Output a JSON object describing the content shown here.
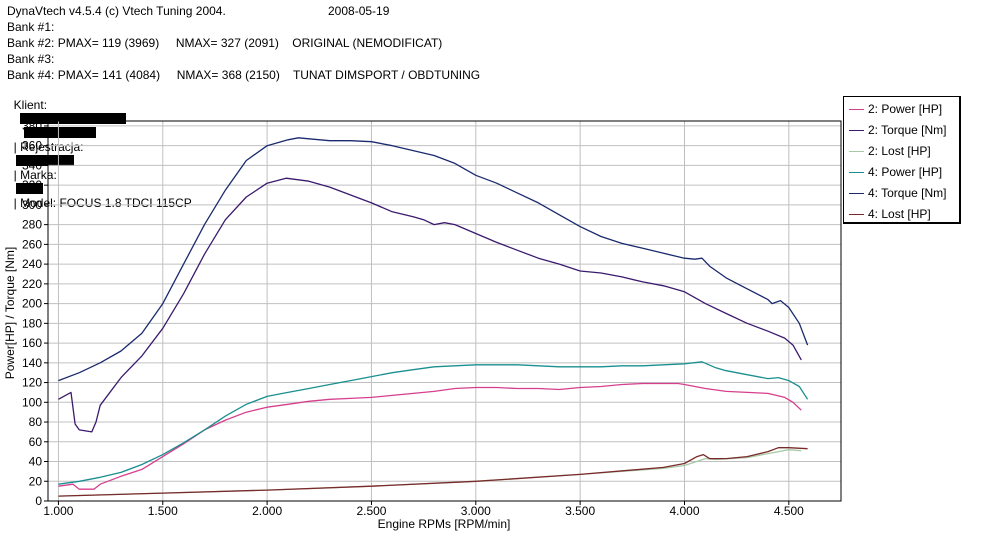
{
  "header": {
    "app_title": "DynaVtech v4.5.4 (c) Vtech Tuning 2004.",
    "date": "2008-05-19",
    "bank1": "Bank #1:",
    "bank2": "Bank #2: PMAX= 119 (3969)     NMAX= 327 (2091)    ORIGINAL (NEMODIFICAT)",
    "bank3": "Bank #3:",
    "bank4": "Bank #4: PMAX= 141 (4084)     NMAX= 368 (2150)    TUNAT DIMSPORT / OBDTUNING",
    "client_label": "Klient:",
    "registration_label": "| Rejestracja:",
    "brand_label": "| Marka:",
    "model_text": "| Model: FOCUS 1.8 TDCI 115CP"
  },
  "colors": {
    "plot_border": "#000000",
    "grid": "#c0c0c0",
    "power2": "#d63f8e",
    "torque2": "#3b1a6e",
    "lost2": "#a8c8a8",
    "power4": "#1a8f8f",
    "torque4": "#1a2a6e",
    "lost4": "#7a2a2a"
  },
  "chart_data": {
    "type": "line",
    "xlabel": "Engine RPMs [RPM/min]",
    "ylabel": "Power[HP] / Torque [Nm]",
    "xlim": [
      950,
      4750
    ],
    "ylim": [
      0,
      385
    ],
    "x_ticks": [
      1000,
      1500,
      2000,
      2500,
      3000,
      3500,
      4000,
      4500
    ],
    "x_tick_labels": [
      "1.000",
      "1.500",
      "2.000",
      "2.500",
      "3.000",
      "3.500",
      "4.000",
      "4.500"
    ],
    "y_ticks": [
      0,
      20,
      40,
      60,
      80,
      100,
      120,
      140,
      160,
      180,
      200,
      220,
      240,
      260,
      280,
      300,
      320,
      340,
      360,
      380
    ],
    "y_tick_labels": [
      "0",
      "20",
      "40",
      "60",
      "80",
      "100",
      "120",
      "140",
      "160",
      "180",
      "200",
      "220",
      "240",
      "260",
      "280",
      "300",
      "320",
      "340",
      "360",
      "380"
    ],
    "grid": true,
    "legend_position": "top-right outside",
    "series": [
      {
        "name": "2: Power [HP]",
        "color_key": "power2",
        "points": [
          [
            1000,
            15
          ],
          [
            1070,
            17
          ],
          [
            1100,
            12
          ],
          [
            1170,
            12
          ],
          [
            1200,
            17
          ],
          [
            1300,
            25
          ],
          [
            1400,
            32
          ],
          [
            1500,
            45
          ],
          [
            1600,
            58
          ],
          [
            1700,
            72
          ],
          [
            1800,
            82
          ],
          [
            1900,
            90
          ],
          [
            2000,
            95
          ],
          [
            2100,
            98
          ],
          [
            2200,
            101
          ],
          [
            2300,
            103
          ],
          [
            2400,
            104
          ],
          [
            2500,
            105
          ],
          [
            2600,
            107
          ],
          [
            2700,
            109
          ],
          [
            2800,
            111
          ],
          [
            2900,
            114
          ],
          [
            3000,
            115
          ],
          [
            3100,
            115
          ],
          [
            3200,
            114
          ],
          [
            3300,
            114
          ],
          [
            3400,
            113
          ],
          [
            3500,
            115
          ],
          [
            3600,
            116
          ],
          [
            3700,
            118
          ],
          [
            3800,
            119
          ],
          [
            3900,
            119
          ],
          [
            3969,
            119
          ],
          [
            4000,
            118
          ],
          [
            4100,
            114
          ],
          [
            4200,
            111
          ],
          [
            4300,
            110
          ],
          [
            4400,
            109
          ],
          [
            4480,
            105
          ],
          [
            4520,
            100
          ],
          [
            4560,
            92
          ]
        ]
      },
      {
        "name": "2: Torque [Nm]",
        "color_key": "torque2",
        "points": [
          [
            1000,
            103
          ],
          [
            1060,
            110
          ],
          [
            1080,
            78
          ],
          [
            1100,
            72
          ],
          [
            1160,
            70
          ],
          [
            1180,
            80
          ],
          [
            1200,
            97
          ],
          [
            1300,
            125
          ],
          [
            1400,
            147
          ],
          [
            1500,
            175
          ],
          [
            1600,
            210
          ],
          [
            1700,
            250
          ],
          [
            1800,
            285
          ],
          [
            1900,
            308
          ],
          [
            2000,
            322
          ],
          [
            2091,
            327
          ],
          [
            2200,
            324
          ],
          [
            2300,
            318
          ],
          [
            2400,
            310
          ],
          [
            2500,
            302
          ],
          [
            2600,
            293
          ],
          [
            2700,
            288
          ],
          [
            2750,
            285
          ],
          [
            2800,
            280
          ],
          [
            2850,
            282
          ],
          [
            2900,
            280
          ],
          [
            3000,
            271
          ],
          [
            3100,
            262
          ],
          [
            3200,
            254
          ],
          [
            3300,
            246
          ],
          [
            3400,
            240
          ],
          [
            3500,
            233
          ],
          [
            3600,
            231
          ],
          [
            3700,
            227
          ],
          [
            3800,
            222
          ],
          [
            3900,
            218
          ],
          [
            4000,
            212
          ],
          [
            4100,
            200
          ],
          [
            4200,
            190
          ],
          [
            4300,
            180
          ],
          [
            4400,
            172
          ],
          [
            4480,
            165
          ],
          [
            4520,
            158
          ],
          [
            4560,
            143
          ]
        ]
      },
      {
        "name": "2: Lost [HP]",
        "color_key": "lost2",
        "points": [
          [
            1000,
            5
          ],
          [
            1500,
            8
          ],
          [
            2000,
            11
          ],
          [
            2500,
            15
          ],
          [
            3000,
            20
          ],
          [
            3500,
            27
          ],
          [
            3900,
            33
          ],
          [
            4000,
            36
          ],
          [
            4100,
            43
          ],
          [
            4150,
            42
          ],
          [
            4300,
            44
          ],
          [
            4400,
            48
          ],
          [
            4500,
            52
          ],
          [
            4560,
            51
          ]
        ]
      },
      {
        "name": "4: Power [HP]",
        "color_key": "power4",
        "points": [
          [
            1000,
            17
          ],
          [
            1100,
            20
          ],
          [
            1200,
            24
          ],
          [
            1300,
            29
          ],
          [
            1400,
            37
          ],
          [
            1500,
            47
          ],
          [
            1600,
            59
          ],
          [
            1700,
            72
          ],
          [
            1800,
            86
          ],
          [
            1900,
            98
          ],
          [
            2000,
            106
          ],
          [
            2100,
            110
          ],
          [
            2200,
            114
          ],
          [
            2300,
            118
          ],
          [
            2400,
            122
          ],
          [
            2500,
            126
          ],
          [
            2600,
            130
          ],
          [
            2700,
            133
          ],
          [
            2800,
            136
          ],
          [
            2900,
            137
          ],
          [
            3000,
            138
          ],
          [
            3100,
            138
          ],
          [
            3200,
            138
          ],
          [
            3300,
            137
          ],
          [
            3400,
            136
          ],
          [
            3500,
            136
          ],
          [
            3600,
            136
          ],
          [
            3700,
            137
          ],
          [
            3800,
            137
          ],
          [
            3900,
            138
          ],
          [
            4000,
            139
          ],
          [
            4084,
            141
          ],
          [
            4150,
            135
          ],
          [
            4200,
            132
          ],
          [
            4300,
            128
          ],
          [
            4400,
            124
          ],
          [
            4450,
            125
          ],
          [
            4500,
            122
          ],
          [
            4550,
            116
          ],
          [
            4590,
            103
          ]
        ]
      },
      {
        "name": "4: Torque [Nm]",
        "color_key": "torque4",
        "points": [
          [
            1000,
            122
          ],
          [
            1100,
            130
          ],
          [
            1200,
            140
          ],
          [
            1300,
            152
          ],
          [
            1400,
            170
          ],
          [
            1500,
            200
          ],
          [
            1600,
            240
          ],
          [
            1700,
            280
          ],
          [
            1800,
            315
          ],
          [
            1900,
            345
          ],
          [
            2000,
            360
          ],
          [
            2100,
            366
          ],
          [
            2150,
            368
          ],
          [
            2200,
            367
          ],
          [
            2300,
            365
          ],
          [
            2400,
            365
          ],
          [
            2500,
            364
          ],
          [
            2600,
            360
          ],
          [
            2700,
            355
          ],
          [
            2800,
            350
          ],
          [
            2900,
            342
          ],
          [
            3000,
            330
          ],
          [
            3100,
            322
          ],
          [
            3200,
            312
          ],
          [
            3300,
            302
          ],
          [
            3400,
            290
          ],
          [
            3500,
            278
          ],
          [
            3600,
            268
          ],
          [
            3700,
            261
          ],
          [
            3800,
            256
          ],
          [
            3900,
            251
          ],
          [
            4000,
            246
          ],
          [
            4050,
            245
          ],
          [
            4084,
            246
          ],
          [
            4120,
            238
          ],
          [
            4200,
            226
          ],
          [
            4300,
            215
          ],
          [
            4400,
            204
          ],
          [
            4420,
            200
          ],
          [
            4460,
            203
          ],
          [
            4500,
            196
          ],
          [
            4550,
            180
          ],
          [
            4590,
            158
          ]
        ]
      },
      {
        "name": "4: Lost [HP]",
        "color_key": "lost4",
        "points": [
          [
            1000,
            5
          ],
          [
            1500,
            8
          ],
          [
            2000,
            11
          ],
          [
            2500,
            15
          ],
          [
            3000,
            20
          ],
          [
            3500,
            27
          ],
          [
            3900,
            34
          ],
          [
            4000,
            38
          ],
          [
            4060,
            45
          ],
          [
            4090,
            47
          ],
          [
            4120,
            43
          ],
          [
            4200,
            43
          ],
          [
            4300,
            45
          ],
          [
            4400,
            50
          ],
          [
            4450,
            54
          ],
          [
            4500,
            54
          ],
          [
            4590,
            53
          ]
        ]
      }
    ]
  }
}
